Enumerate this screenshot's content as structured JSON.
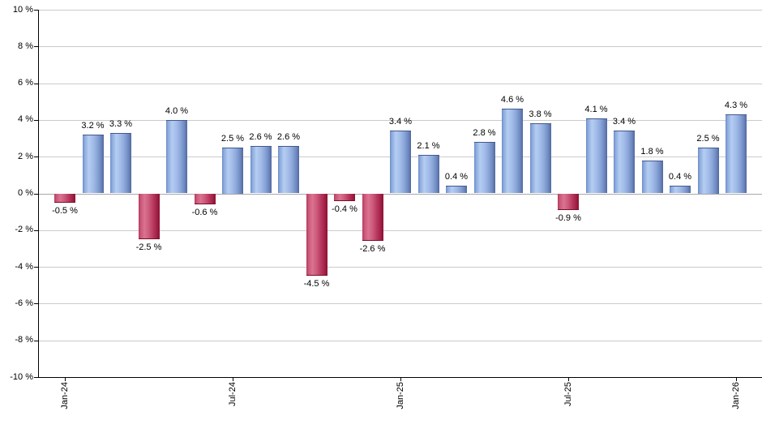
{
  "chart_data": {
    "type": "bar",
    "title": "",
    "xlabel": "",
    "ylabel": "",
    "ylim": [
      -10,
      10
    ],
    "y_tick_step": 2,
    "y_tick_labels": [
      "10 %",
      "8 %",
      "6 %",
      "4 %",
      "2 %",
      "0 %",
      "-2 %",
      "-4 %",
      "-6 %",
      "-8 %",
      "-10 %"
    ],
    "x_tick_labels": [
      {
        "label": "Jan-24",
        "bar_index": 0
      },
      {
        "label": "Jul-24",
        "bar_index": 6
      },
      {
        "label": "Jan-25",
        "bar_index": 12
      },
      {
        "label": "Jul-25",
        "bar_index": 18
      },
      {
        "label": "Jan-26",
        "bar_index": 24
      }
    ],
    "bars": [
      {
        "value": -0.5,
        "label": "-0.5 %"
      },
      {
        "value": 3.2,
        "label": "3.2 %"
      },
      {
        "value": 3.3,
        "label": "3.3 %"
      },
      {
        "value": -2.5,
        "label": "-2.5 %"
      },
      {
        "value": 4.0,
        "label": "4.0 %"
      },
      {
        "value": -0.6,
        "label": "-0.6 %"
      },
      {
        "value": 2.5,
        "label": "2.5 %"
      },
      {
        "value": 2.6,
        "label": "2.6 %"
      },
      {
        "value": 2.6,
        "label": "2.6 %"
      },
      {
        "value": -4.5,
        "label": "-4.5 %"
      },
      {
        "value": -0.4,
        "label": "-0.4 %"
      },
      {
        "value": -2.6,
        "label": "-2.6 %"
      },
      {
        "value": 3.4,
        "label": "3.4 %"
      },
      {
        "value": 2.1,
        "label": "2.1 %"
      },
      {
        "value": 0.4,
        "label": "0.4 %"
      },
      {
        "value": 2.8,
        "label": "2.8 %"
      },
      {
        "value": 4.6,
        "label": "4.6 %"
      },
      {
        "value": 3.8,
        "label": "3.8 %"
      },
      {
        "value": -0.9,
        "label": "-0.9 %"
      },
      {
        "value": 4.1,
        "label": "4.1 %"
      },
      {
        "value": 3.4,
        "label": "3.4 %"
      },
      {
        "value": 1.8,
        "label": "1.8 %"
      },
      {
        "value": 0.4,
        "label": "0.4 %"
      },
      {
        "value": 2.5,
        "label": "2.5 %"
      },
      {
        "value": 4.3,
        "label": "4.3 %"
      }
    ],
    "grid": true,
    "legend": null,
    "colors": {
      "positive_bar": "#8fade0",
      "positive_bar_highlight": "#b4cdf2",
      "positive_bar_dark": "#51689e",
      "negative_bar": "#c84a6e",
      "negative_bar_highlight": "#da7390",
      "negative_bar_dark": "#8c1132",
      "gridline": "#cbcbcb",
      "zero_line": "#a8a8a8",
      "axis": "#000000",
      "label_text": "#000000",
      "background": "#ffffff"
    }
  }
}
